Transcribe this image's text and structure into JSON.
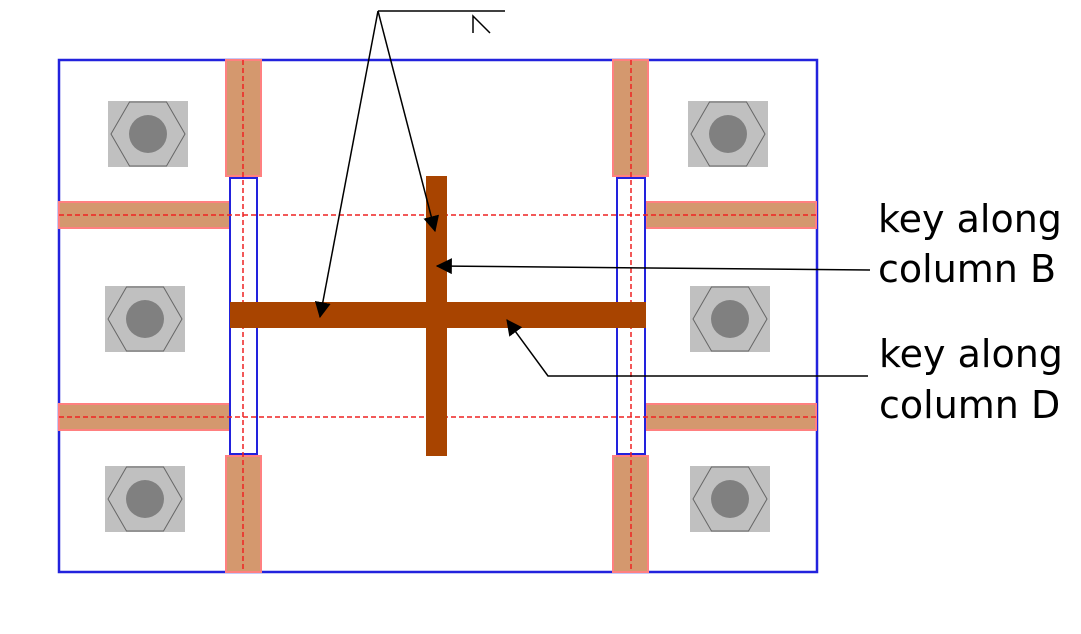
{
  "labels": {
    "key_b_line1": "key along",
    "key_b_line2": "column B",
    "key_d_line1": "key along",
    "key_d_line2": "column D"
  },
  "colors": {
    "outline": "#2222dd",
    "strip_fill": "#d4986e",
    "strip_edge": "#ff8080",
    "key_fill": "#a84400",
    "bolt_plate": "#c0c0c0",
    "bolt_head": "#808080",
    "guide_line": "#ee2222",
    "leader": "#000000"
  },
  "icons": {
    "bolt": "hex-bolt-icon",
    "weld_symbol": "weld-symbol-icon"
  }
}
